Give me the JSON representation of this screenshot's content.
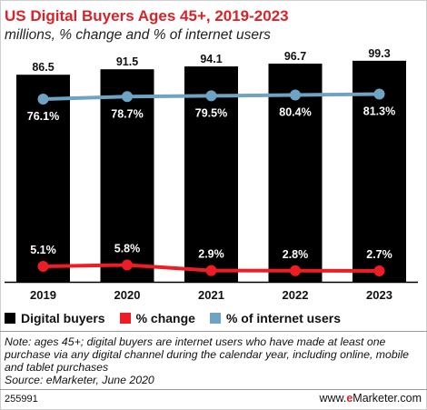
{
  "header": {
    "title": "US Digital Buyers Ages 45+, 2019-2023",
    "subtitle": "millions, % change and % of internet users"
  },
  "legend": [
    {
      "label": "Digital buyers",
      "color": "#000000"
    },
    {
      "label": "% change",
      "color": "#ee1c24"
    },
    {
      "label": "% of internet users",
      "color": "#6ea3c4"
    }
  ],
  "chart_data": {
    "type": "bar",
    "title": "US Digital Buyers Ages 45+, 2019-2023",
    "subtitle": "millions, % change and % of internet users",
    "categories": [
      "2019",
      "2020",
      "2021",
      "2022",
      "2023"
    ],
    "series": [
      {
        "name": "Digital buyers",
        "type": "bar",
        "color": "#000000",
        "values": [
          86.5,
          91.5,
          94.1,
          96.7,
          99.3
        ],
        "labels": [
          "86.5",
          "91.5",
          "94.1",
          "96.7",
          "99.3"
        ]
      },
      {
        "name": "% change",
        "type": "line",
        "color": "#ee1c24",
        "values": [
          5.1,
          5.8,
          2.9,
          2.8,
          2.7
        ],
        "labels": [
          "5.1%",
          "5.8%",
          "2.9%",
          "2.8%",
          "2.7%"
        ]
      },
      {
        "name": "% of internet users",
        "type": "line",
        "color": "#6ea3c4",
        "values": [
          76.1,
          78.7,
          79.5,
          80.4,
          81.3
        ],
        "labels": [
          "76.1%",
          "78.7%",
          "79.5%",
          "80.4%",
          "81.3%"
        ]
      }
    ],
    "ylim": [
      0,
      100
    ],
    "grid": false,
    "legend_position": "bottom-left"
  },
  "footer": {
    "note": "Note: ages 45+; digital buyers are internet users who have made at least one purchase via any digital channel during the calendar year, including online, mobile and tablet purchases",
    "source": "Source: eMarketer, June 2020",
    "chart_id": "255991",
    "brand_prefix": "www.",
    "brand_mark": "e",
    "brand_suffix": "Marketer.com"
  }
}
